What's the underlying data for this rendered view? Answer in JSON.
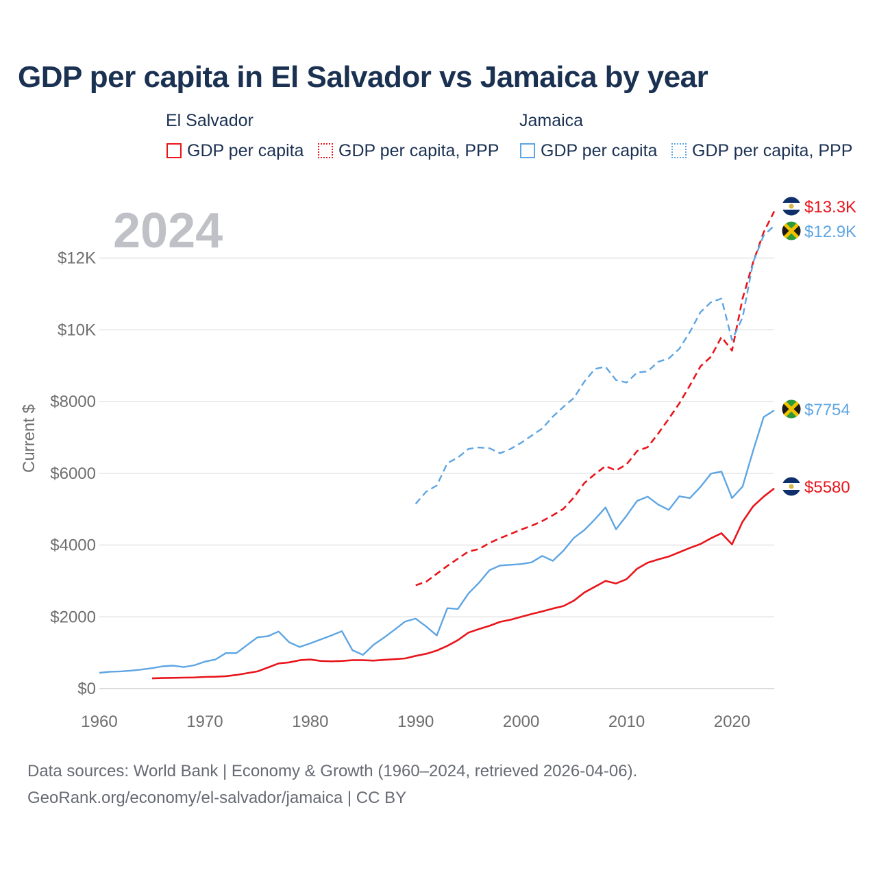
{
  "title": "GDP per capita in El Salvador vs Jamaica by year",
  "legend": {
    "groups": [
      {
        "name": "El Salvador",
        "items": [
          "GDP per capita",
          "GDP per capita, PPP"
        ]
      },
      {
        "name": "Jamaica",
        "items": [
          "GDP per capita",
          "GDP per capita, PPP"
        ]
      }
    ]
  },
  "colors": {
    "el_salvador": "#e8151b",
    "jamaica": "#5da5e3",
    "grid": "#e4e4e4",
    "year_watermark": "#bfc1c6",
    "axis_text": "#6e6e6e"
  },
  "year_watermark": "2024",
  "footer": {
    "line1": "Data sources: World Bank | Economy & Growth (1960–2024, retrieved 2026-04-06).",
    "line2": "GeoRank.org/economy/el-salvador/jamaica | CC BY"
  },
  "end_labels": [
    {
      "series": "El Salvador GDP per capita, PPP",
      "text": "$13.3K",
      "country": "el_salvador",
      "value": 13300
    },
    {
      "series": "Jamaica GDP per capita, PPP",
      "text": "$12.9K",
      "country": "jamaica",
      "value": 12900
    },
    {
      "series": "Jamaica GDP per capita",
      "text": "$7754",
      "country": "jamaica",
      "value": 7754
    },
    {
      "series": "El Salvador GDP per capita",
      "text": "$5580",
      "country": "el_salvador",
      "value": 5580
    }
  ],
  "chart_data": {
    "type": "line",
    "title": "GDP per capita in El Salvador vs Jamaica by year",
    "xlabel": "",
    "ylabel": "Current $",
    "xlim": [
      1960,
      2024
    ],
    "ylim": [
      0,
      13500
    ],
    "x_ticks": [
      1960,
      1970,
      1980,
      1990,
      2000,
      2010,
      2020
    ],
    "x_tick_labels": [
      "1960",
      "1970",
      "1980",
      "1990",
      "2000",
      "2010",
      "2020"
    ],
    "y_ticks": [
      0,
      2000,
      4000,
      6000,
      8000,
      10000,
      12000
    ],
    "y_tick_labels": [
      "$0",
      "$2000",
      "$4000",
      "$6000",
      "$8000",
      "$10K",
      "$12K"
    ],
    "grid": true,
    "series": [
      {
        "name": "El Salvador GDP per capita",
        "country": "el_salvador",
        "style": "solid",
        "start": 1965,
        "values": [
          285,
          295,
          300,
          305,
          310,
          325,
          330,
          345,
          380,
          430,
          480,
          590,
          700,
          730,
          790,
          810,
          770,
          760,
          770,
          790,
          790,
          780,
          800,
          820,
          840,
          910,
          970,
          1060,
          1190,
          1350,
          1560,
          1660,
          1750,
          1860,
          1920,
          2000,
          2080,
          2150,
          2230,
          2300,
          2450,
          2680,
          2840,
          3000,
          2930,
          3050,
          3340,
          3510,
          3600,
          3680,
          3800,
          3920,
          4030,
          4190,
          4330,
          4020,
          4650,
          5080,
          5350,
          5580
        ]
      },
      {
        "name": "El Salvador GDP per capita, PPP",
        "country": "el_salvador",
        "style": "dashed",
        "start": 1990,
        "values": [
          2880,
          2980,
          3200,
          3420,
          3620,
          3820,
          3890,
          4060,
          4190,
          4310,
          4430,
          4540,
          4670,
          4830,
          5010,
          5330,
          5730,
          5980,
          6200,
          6080,
          6250,
          6620,
          6730,
          7110,
          7520,
          7950,
          8450,
          8980,
          9250,
          9800,
          9420,
          10870,
          11880,
          12720,
          13300
        ]
      },
      {
        "name": "Jamaica GDP per capita",
        "country": "jamaica",
        "style": "solid",
        "start": 1960,
        "values": [
          440,
          470,
          480,
          500,
          530,
          570,
          620,
          640,
          600,
          650,
          750,
          810,
          990,
          990,
          1210,
          1430,
          1460,
          1590,
          1290,
          1160,
          1260,
          1370,
          1480,
          1600,
          1070,
          940,
          1220,
          1420,
          1640,
          1870,
          1950,
          1730,
          1480,
          2240,
          2220,
          2650,
          2950,
          3300,
          3430,
          3450,
          3470,
          3520,
          3700,
          3560,
          3840,
          4200,
          4420,
          4720,
          5050,
          4440,
          4820,
          5230,
          5350,
          5130,
          4980,
          5360,
          5310,
          5620,
          5990,
          6050,
          5310,
          5630,
          6630,
          7570,
          7754
        ]
      },
      {
        "name": "Jamaica GDP per capita, PPP",
        "country": "jamaica",
        "style": "dashed",
        "start": 1990,
        "values": [
          5150,
          5490,
          5660,
          6280,
          6440,
          6680,
          6720,
          6700,
          6560,
          6680,
          6850,
          7050,
          7250,
          7580,
          7850,
          8100,
          8560,
          8910,
          8970,
          8600,
          8530,
          8810,
          8840,
          9110,
          9200,
          9470,
          9940,
          10490,
          10770,
          10870,
          9710,
          10340,
          11880,
          12630,
          12900
        ]
      }
    ]
  }
}
